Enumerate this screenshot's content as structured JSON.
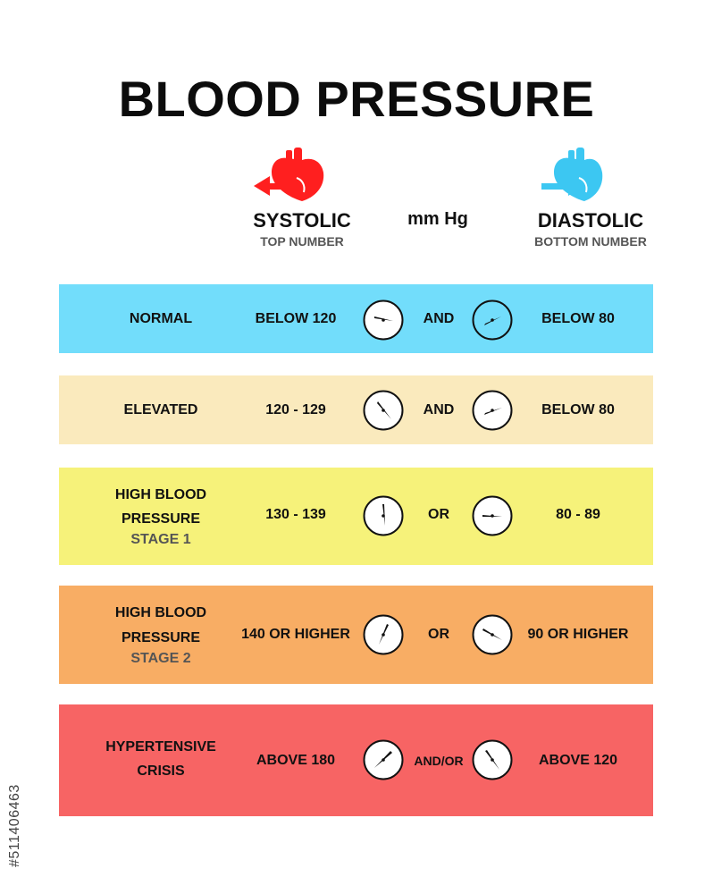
{
  "title": "BLOOD PRESSURE",
  "unit": "mm Hg",
  "systolic": {
    "label": "SYSTOLIC",
    "sub": "TOP NUMBER",
    "color": "#ff1f1f"
  },
  "diastolic": {
    "label": "DIASTOLIC",
    "sub": "BOTTOM NUMBER",
    "color": "#3cc7f2"
  },
  "rows": [
    {
      "category_line1": "NORMAL",
      "category_line2": "",
      "stage": "",
      "systolic": "BELOW 120",
      "connector": "AND",
      "diastolic": "BELOW 80",
      "color": "#72ddfb"
    },
    {
      "category_line1": "ELEVATED",
      "category_line2": "",
      "stage": "",
      "systolic": "120 - 129",
      "connector": "AND",
      "diastolic": "BELOW 80",
      "color": "#faeabd"
    },
    {
      "category_line1": "HIGH BLOOD",
      "category_line2": "PRESSURE",
      "stage": "STAGE 1",
      "systolic": "130 - 139",
      "connector": "OR",
      "diastolic": "80 - 89",
      "color": "#f6f27a"
    },
    {
      "category_line1": "HIGH BLOOD",
      "category_line2": "PRESSURE",
      "stage": "STAGE 2",
      "systolic": "140 OR HIGHER",
      "connector": "OR",
      "diastolic": "90 OR HIGHER",
      "color": "#f8ad64"
    },
    {
      "category_line1": "HYPERTENSIVE",
      "category_line2": "CRISIS",
      "stage": "",
      "systolic": "ABOVE 180",
      "connector": "AND/OR",
      "diastolic": "ABOVE 120",
      "color": "#f76464"
    }
  ],
  "watermark_id": "#511406463"
}
